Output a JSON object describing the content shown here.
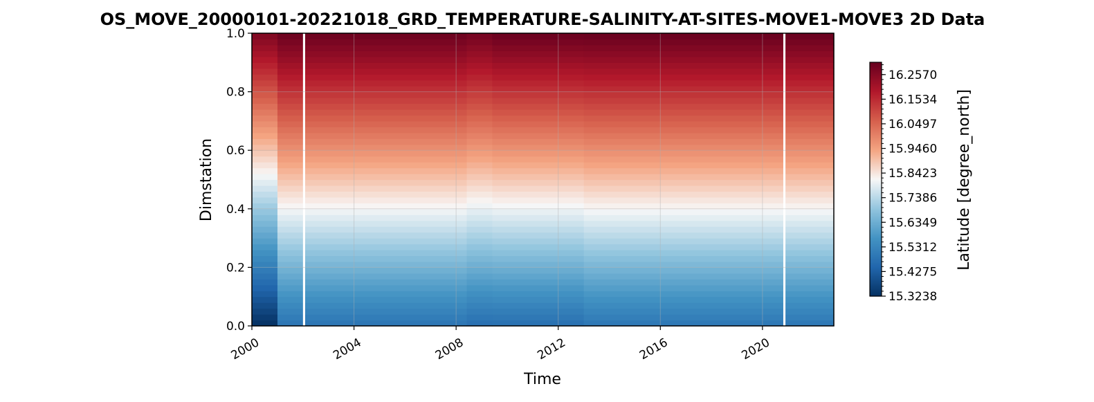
{
  "chart_data": {
    "type": "heatmap",
    "title": "OS_MOVE_20000101-20221018_GRD_TEMPERATURE-SALINITY-AT-SITES-MOVE1-MOVE3 2D Data",
    "xlabel": "Time",
    "ylabel": "Dimstation",
    "x_start": "2000-01-01",
    "x_end": "2022-10-18",
    "xlim": [
      "2000-01-01",
      "2022-10-18"
    ],
    "ylim": [
      0.0,
      1.0
    ],
    "x_ticks": [
      "2000",
      "2004",
      "2008",
      "2012",
      "2016",
      "2020"
    ],
    "y_ticks": [
      "0.0",
      "0.2",
      "0.4",
      "0.6",
      "0.8",
      "1.0"
    ],
    "grid": true,
    "colormap": "RdBu_r",
    "colorbar": {
      "label": "Latitude [degree_north]",
      "min": 15.3238,
      "max": 16.3089,
      "ticks": [
        "15.3238",
        "15.4275",
        "15.5312",
        "15.6349",
        "15.7386",
        "15.8423",
        "15.9460",
        "16.0497",
        "16.1534",
        "16.2570"
      ]
    },
    "gaps": [
      {
        "start": "2002-01-01",
        "end": "2002-02-01"
      },
      {
        "start": "2020-10-25",
        "end": "2020-11-25"
      }
    ],
    "columns": [
      {
        "start": "2000-01-01",
        "end": "2001-01-01",
        "lat_min": 15.3238,
        "lat_max": 16.273
      },
      {
        "start": "2001-01-01",
        "end": "2008-06-01",
        "lat_min": 15.485,
        "lat_max": 16.303
      },
      {
        "start": "2008-06-01",
        "end": "2009-06-01",
        "lat_min": 15.47,
        "lat_max": 16.29
      },
      {
        "start": "2009-06-01",
        "end": "2013-01-01",
        "lat_min": 15.472,
        "lat_max": 16.306
      },
      {
        "start": "2013-01-01",
        "end": "2022-10-18",
        "lat_min": 15.49,
        "lat_max": 16.3089
      }
    ]
  }
}
